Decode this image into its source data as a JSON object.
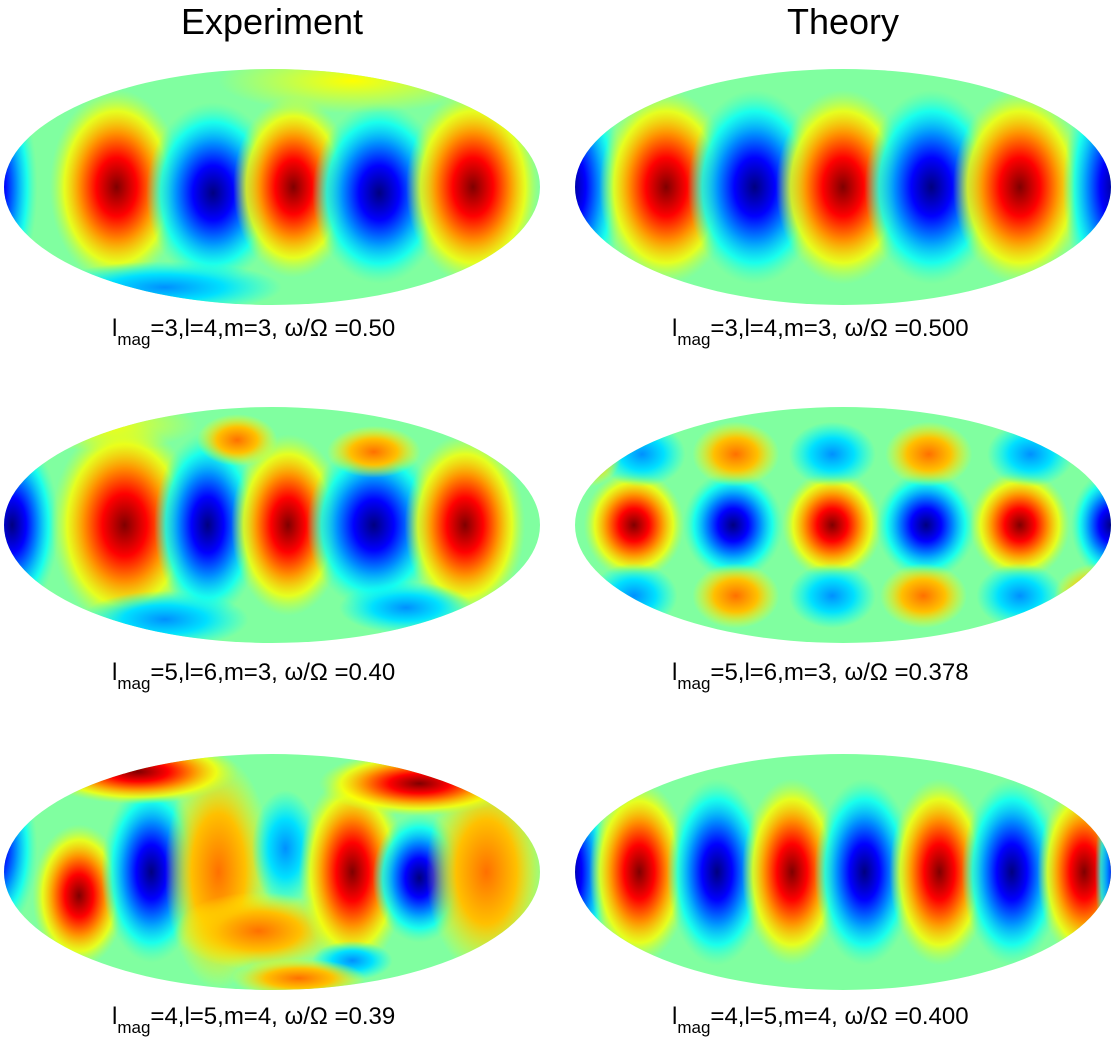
{
  "columns": [
    {
      "title": "Experiment",
      "captions": [
        {
          "base": "l",
          "subscript": "mag",
          "text": "=3,l=4,m=3, ω/Ω =0.50"
        },
        {
          "base": "l",
          "subscript": "mag",
          "text": "=5,l=6,m=3, ω/Ω =0.40"
        },
        {
          "base": "l",
          "subscript": "mag",
          "text": "=4,l=5,m=4, ω/Ω =0.39"
        }
      ]
    },
    {
      "title": "Theory",
      "captions": [
        {
          "base": "l",
          "subscript": "mag",
          "text": "=3,l=4,m=3, ω/Ω =0.500"
        },
        {
          "base": "l",
          "subscript": "mag",
          "text": "=5,l=6,m=3, ω/Ω =0.378"
        },
        {
          "base": "l",
          "subscript": "mag",
          "text": "=4,l=5,m=4, ω/Ω =0.400"
        }
      ]
    }
  ]
}
